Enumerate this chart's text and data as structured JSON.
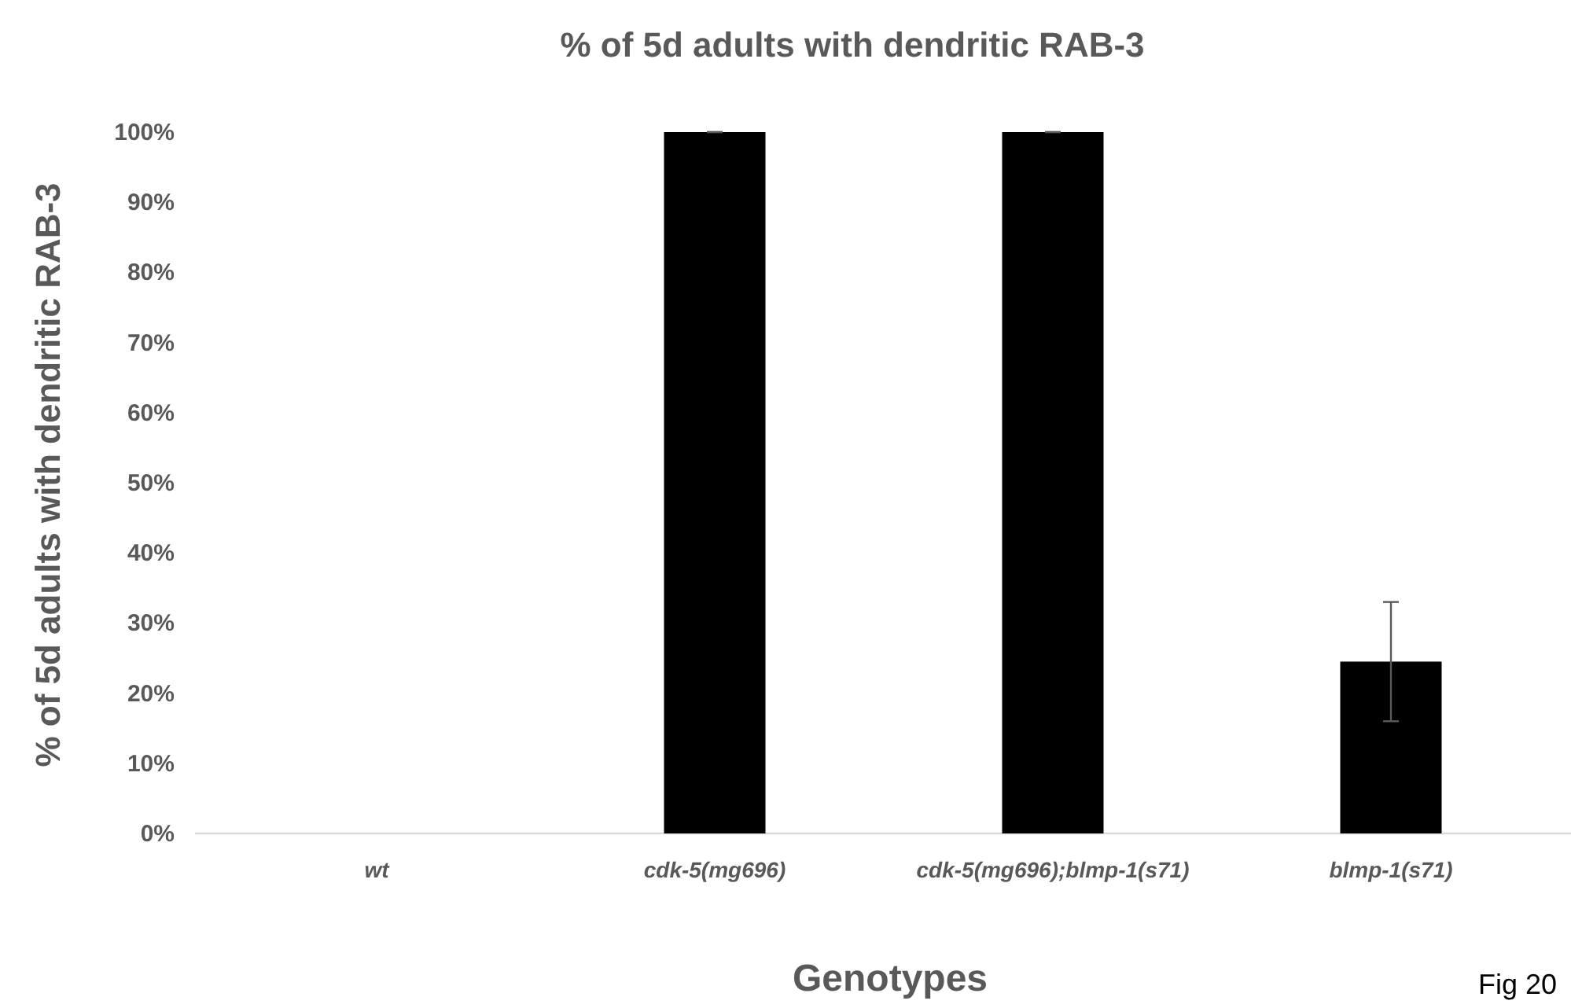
{
  "chart_data": {
    "type": "bar",
    "title": "% of 5d adults with dendritic RAB-3",
    "xlabel": "Genotypes",
    "ylabel": "% of 5d adults with dendritic RAB-3",
    "categories": [
      "wt",
      "cdk-5(mg696)",
      "cdk-5(mg696);blmp-1(s71)",
      "blmp-1(s71)"
    ],
    "values": [
      0,
      100,
      100,
      24.5
    ],
    "color": "#000000",
    "errors": [
      null,
      0,
      0,
      8.5
    ],
    "ylim": [
      0,
      100
    ],
    "yticks": [
      {
        "value": 0,
        "label": "0%"
      },
      {
        "value": 10,
        "label": "10%"
      },
      {
        "value": 20,
        "label": "20%"
      },
      {
        "value": 30,
        "label": "30%"
      },
      {
        "value": 40,
        "label": "40%"
      },
      {
        "value": 50,
        "label": "50%"
      },
      {
        "value": 60,
        "label": "60%"
      },
      {
        "value": 70,
        "label": "70%"
      },
      {
        "value": 80,
        "label": "80%"
      },
      {
        "value": 90,
        "label": "90%"
      },
      {
        "value": 100,
        "label": "100%"
      }
    ],
    "grid": false,
    "annotations": [
      "Fig 20"
    ]
  }
}
